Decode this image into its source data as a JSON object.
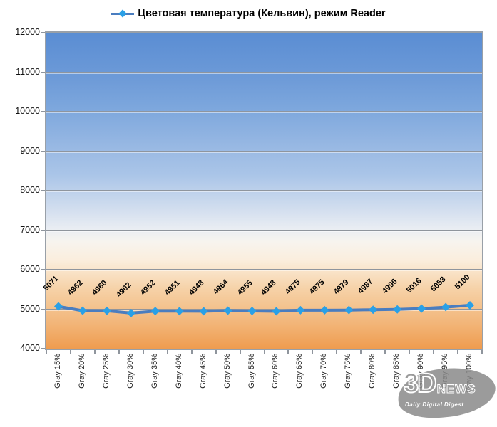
{
  "chart_data": {
    "type": "line",
    "title": "Цветовая температура (Кельвин), режим Reader",
    "series_name": "Цветовая температура (Кельвин), режим Reader",
    "categories": [
      "Gray 15%",
      "Gray 20%",
      "Gray 25%",
      "Gray 30%",
      "Gray 35%",
      "Gray 40%",
      "Gray 45%",
      "Gray 50%",
      "Gray 55%",
      "Gray 60%",
      "Gray 65%",
      "Gray 70%",
      "Gray 75%",
      "Gray 80%",
      "Gray 85%",
      "Gray 90%",
      "Gray 95%",
      "Gray 100%"
    ],
    "values": [
      5071,
      4962,
      4960,
      4902,
      4952,
      4951,
      4948,
      4964,
      4955,
      4948,
      4975,
      4975,
      4979,
      4987,
      4996,
      5016,
      5053,
      5100
    ],
    "ylim": [
      4000,
      12000
    ],
    "ytick_step": 1000,
    "yticks": [
      4000,
      5000,
      6000,
      7000,
      8000,
      9000,
      10000,
      11000,
      12000
    ],
    "grid": true,
    "legend_position": "top",
    "xlabel": "",
    "ylabel": "",
    "data_labels_shown": true
  },
  "colors": {
    "line": "#4b7dbf",
    "marker": "#2aa0e6",
    "grid": "#8f959d",
    "axis_border": "#99a0a8",
    "plot_gradient_top": "#5a8dd3",
    "plot_gradient_bottom": "#ef9c4f",
    "text": "#000000",
    "watermark_gray": "#8a8a8a"
  },
  "watermark": {
    "brand_top": "3D",
    "brand_right": "NEWS",
    "tagline": "Daily Digital Digest"
  }
}
